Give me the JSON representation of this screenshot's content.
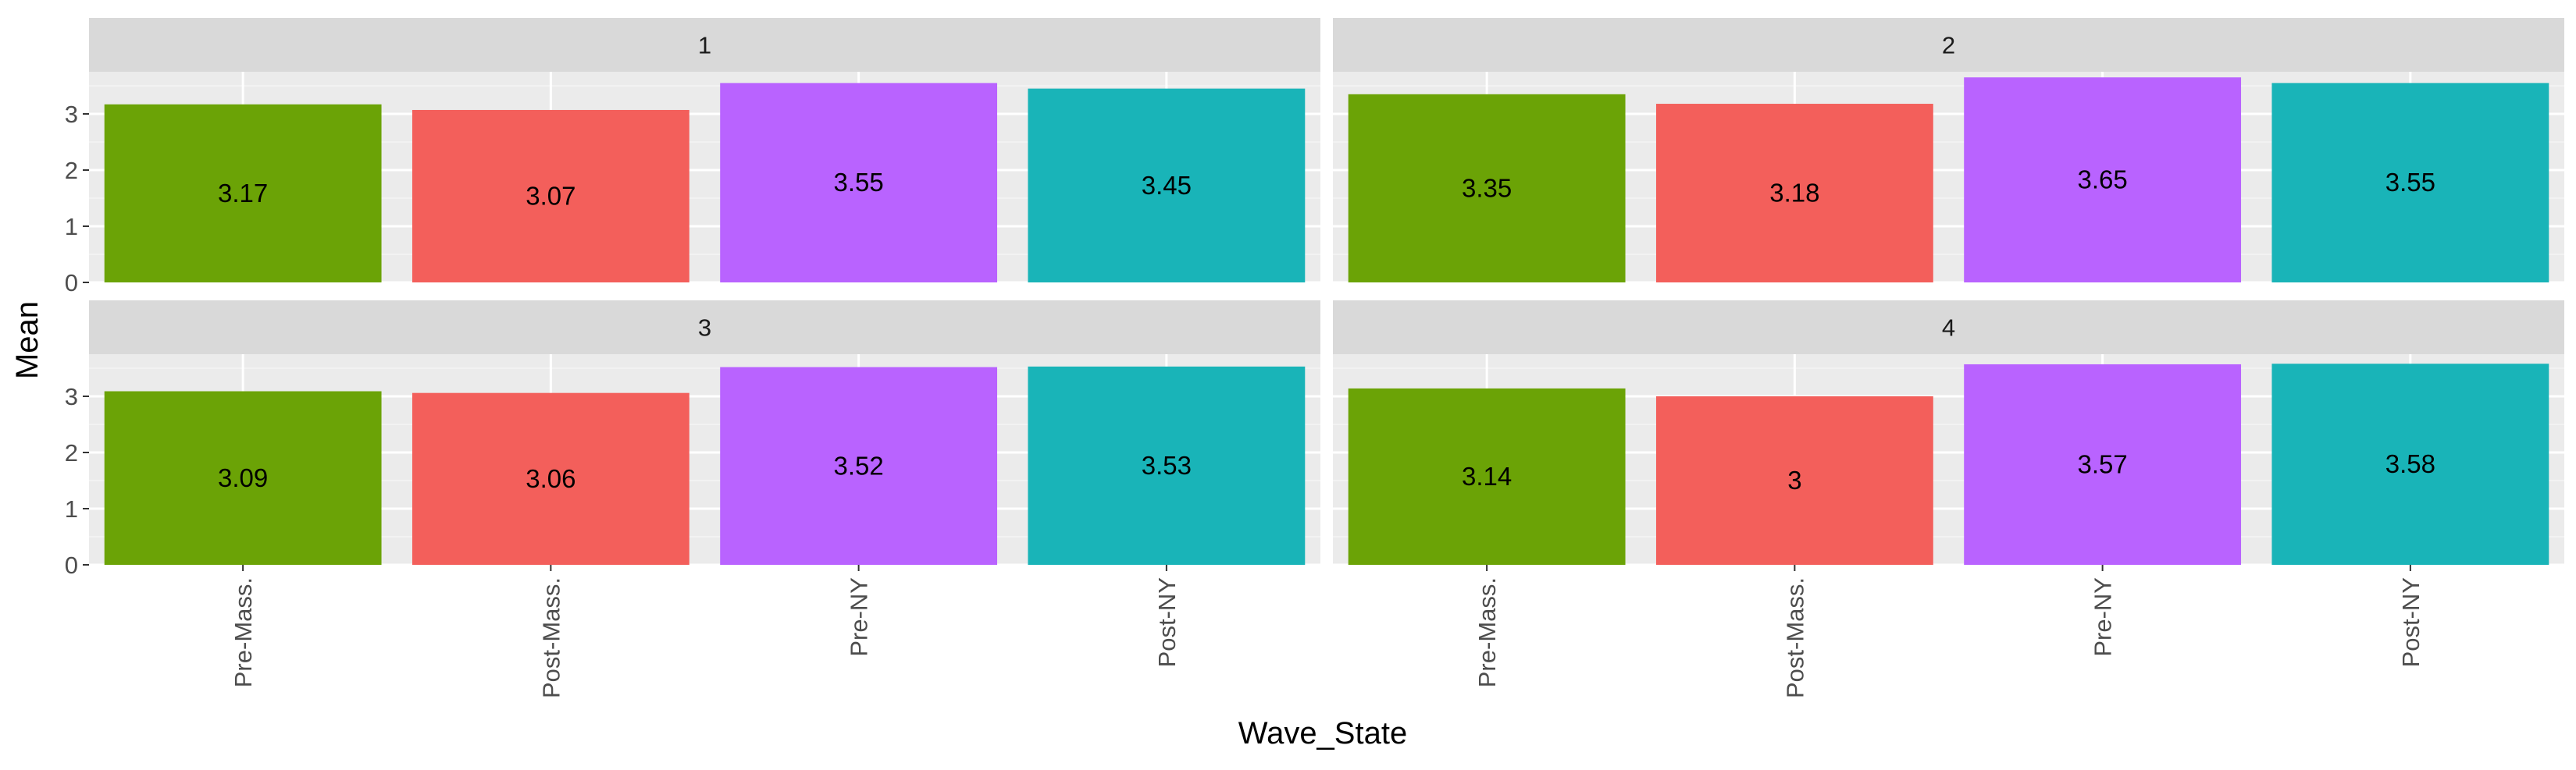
{
  "chart_data": {
    "type": "bar",
    "xlabel": "Wave_State",
    "ylabel": "Mean",
    "ylim": [
      0,
      3.75
    ],
    "yticks": [
      "0",
      "1",
      "2",
      "3"
    ],
    "grid": true,
    "categories": [
      "Pre-Mass.",
      "Post-Mass.",
      "Pre-NY",
      "Post-NY"
    ],
    "colors": {
      "Pre-Mass.": "#6ba306",
      "Post-Mass.": "#f35f5b",
      "Pre-NY": "#b963ff",
      "Post-NY": "#19b4b8"
    },
    "panels": [
      {
        "label": "1",
        "values": [
          3.17,
          3.07,
          3.55,
          3.45
        ],
        "value_labels": [
          "3.17",
          "3.07",
          "3.55",
          "3.45"
        ]
      },
      {
        "label": "2",
        "values": [
          3.35,
          3.18,
          3.65,
          3.55
        ],
        "value_labels": [
          "3.35",
          "3.18",
          "3.65",
          "3.55"
        ]
      },
      {
        "label": "3",
        "values": [
          3.09,
          3.06,
          3.52,
          3.53
        ],
        "value_labels": [
          "3.09",
          "3.06",
          "3.52",
          "3.53"
        ]
      },
      {
        "label": "4",
        "values": [
          3.14,
          3.0,
          3.57,
          3.58
        ],
        "value_labels": [
          "3.14",
          "3",
          "3.57",
          "3.58"
        ]
      }
    ]
  }
}
